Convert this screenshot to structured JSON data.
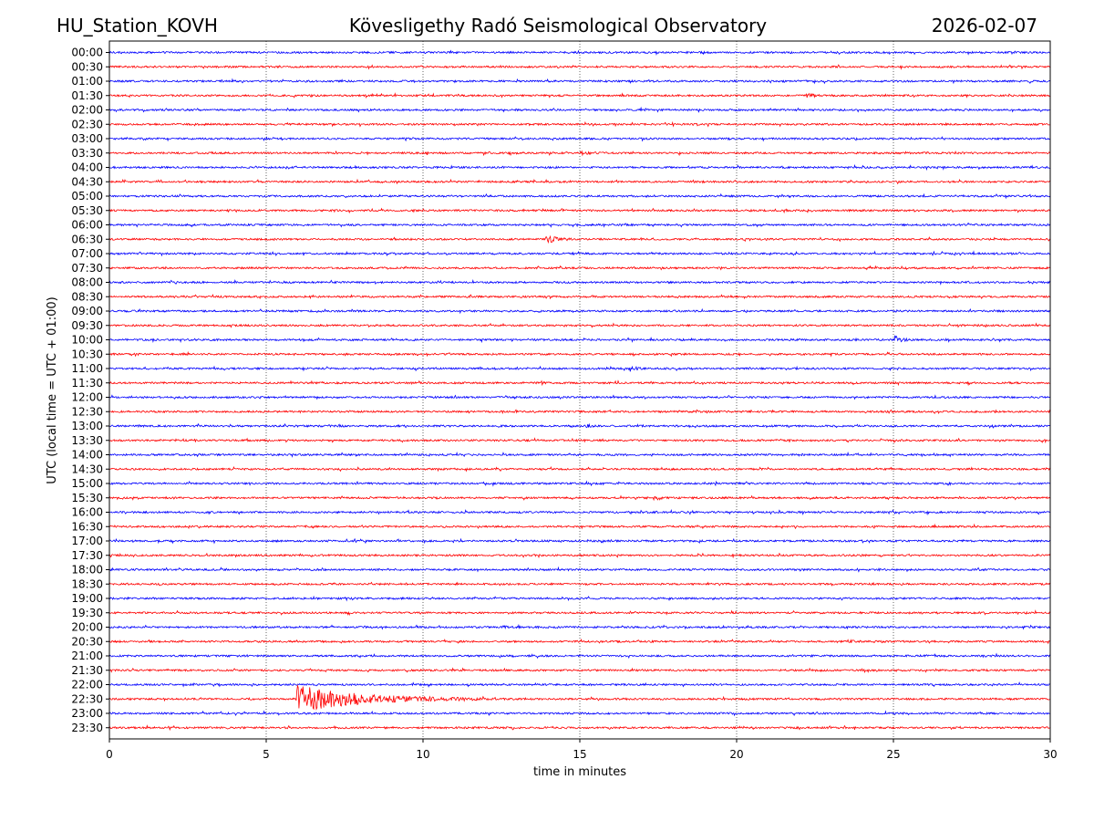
{
  "header": {
    "station": "HU_Station_KOVH",
    "observatory": "Kövesligethy Radó Seismological Observatory",
    "date": "2026-02-07"
  },
  "chart_data": {
    "type": "line",
    "title": "Kövesligethy Radó Seismological Observatory",
    "xlabel": "time in minutes",
    "ylabel": "UTC (local time = UTC + 01:00)",
    "xlim": [
      0,
      30
    ],
    "x_ticks": [
      0,
      5,
      10,
      15,
      20,
      25,
      30
    ],
    "x_grid": [
      5,
      10,
      15,
      20,
      25
    ],
    "row_labels": [
      "00:00",
      "00:30",
      "01:00",
      "01:30",
      "02:00",
      "02:30",
      "03:00",
      "03:30",
      "04:00",
      "04:30",
      "05:00",
      "05:30",
      "06:00",
      "06:30",
      "07:00",
      "07:30",
      "08:00",
      "08:30",
      "09:00",
      "09:30",
      "10:00",
      "10:30",
      "11:00",
      "11:30",
      "12:00",
      "12:30",
      "13:00",
      "13:30",
      "14:00",
      "14:30",
      "15:00",
      "15:30",
      "16:00",
      "16:30",
      "17:00",
      "17:30",
      "18:00",
      "18:30",
      "19:00",
      "19:30",
      "20:00",
      "20:30",
      "21:00",
      "21:30",
      "22:00",
      "22:30",
      "23:00",
      "23:30"
    ],
    "series_colors": [
      "#0000ff",
      "#ff0000"
    ],
    "events": [
      {
        "row": "01:30",
        "minute": 22.2,
        "duration": 0.6,
        "amplitude": 3
      },
      {
        "row": "03:30",
        "minute": 15.0,
        "duration": 0.8,
        "amplitude": 2
      },
      {
        "row": "06:30",
        "minute": 13.9,
        "duration": 1.0,
        "amplitude": 4
      },
      {
        "row": "10:00",
        "minute": 25.0,
        "duration": 0.6,
        "amplitude": 5
      },
      {
        "row": "11:00",
        "minute": 16.5,
        "duration": 0.5,
        "amplitude": 6
      },
      {
        "row": "13:00",
        "minute": 15.2,
        "duration": 0.3,
        "amplitude": 3
      },
      {
        "row": "20:00",
        "minute": 12.5,
        "duration": 0.3,
        "amplitude": 2
      },
      {
        "row": "20:30",
        "minute": 23.5,
        "duration": 0.5,
        "amplitude": 2
      },
      {
        "row": "22:30",
        "minute": 5.95,
        "duration": 6.0,
        "amplitude": 15
      }
    ]
  }
}
